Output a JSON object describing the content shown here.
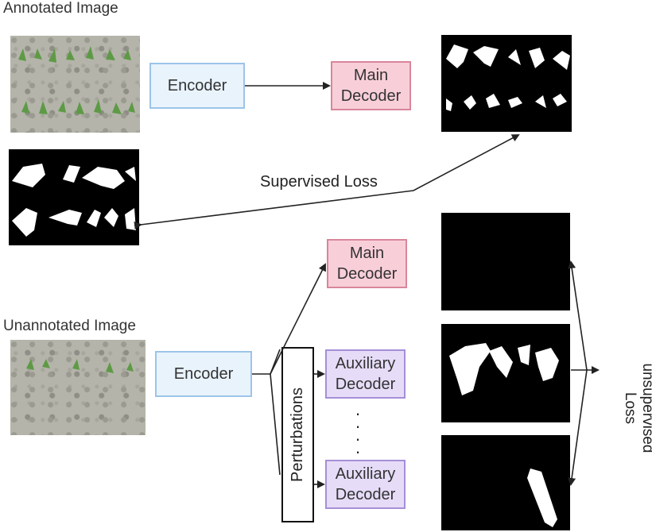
{
  "top": {
    "title": "Annotated Image",
    "encoder_label": "Encoder",
    "main_decoder_label": "Main\nDecoder"
  },
  "supervised_loss_label": "Supervised Loss",
  "bottom": {
    "title": "Unannotated Image",
    "encoder_label": "Encoder",
    "perturbations_label": "Perturbations",
    "main_decoder_label": "Main\nDecoder",
    "aux_decoder_1_label": "Auxiliary\nDecoder",
    "aux_decoder_2_label": "Auxiliary\nDecoder",
    "dots": "·\n·\n·\n·\n·"
  },
  "unsupervised_loss_label": "unsupervised\nLoss",
  "colors": {
    "encoder_fill": "#e9f3fc",
    "main_decoder_fill": "#f8cfd9",
    "aux_decoder_fill": "#e6dcf8",
    "mask_background": "#000000",
    "plant_green": "#5e9a46"
  }
}
